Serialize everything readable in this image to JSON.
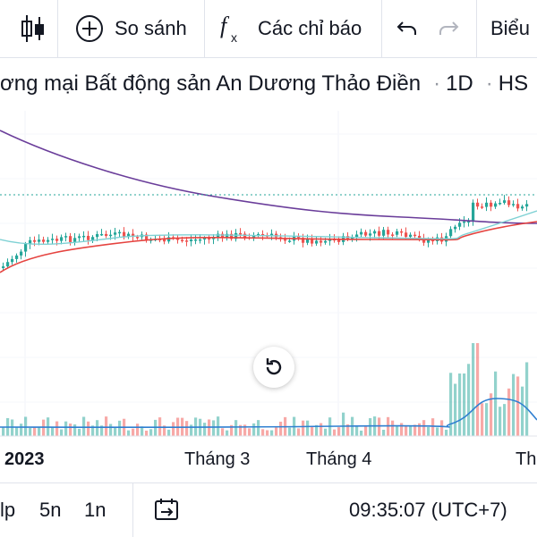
{
  "toolbar": {
    "candles_icon": "candlestick-icon",
    "compare_label": "So sánh",
    "indicators_label": "Các chỉ báo",
    "chart_type_label": "Biểu"
  },
  "symbol": {
    "name": "ơng mại Bất động sản An Dương Thảo Điền",
    "interval": "1D",
    "exchange": "HS"
  },
  "time_axis": {
    "labels": [
      "2023",
      "Tháng 3",
      "Tháng 4",
      "Th"
    ]
  },
  "bottom_bar": {
    "ranges": [
      "lp",
      "5n",
      "1n"
    ],
    "time": "09:35:07 (UTC+7)"
  },
  "colors": {
    "up": "#26a69a",
    "down": "#ef5350",
    "ma_long": "#6a3d9a",
    "ma_mid": "#e5433f",
    "ma_short": "#7fd1d4",
    "vol_ma": "#2f7fd1"
  }
}
